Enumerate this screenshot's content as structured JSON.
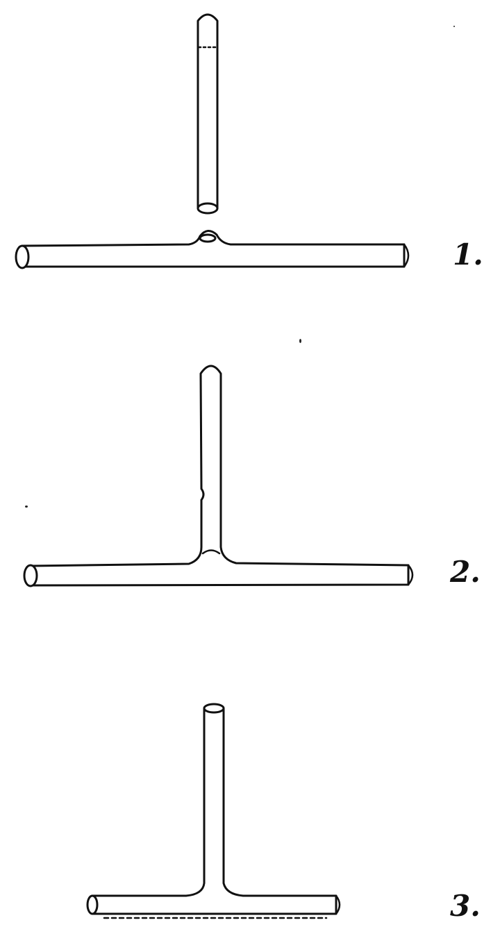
{
  "figures": [
    {
      "label": "1."
    },
    {
      "label": "2."
    },
    {
      "label": "3."
    }
  ]
}
